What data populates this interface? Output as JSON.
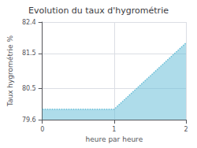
{
  "chart_data": {
    "type": "area",
    "title": "Evolution du taux d'hygrométrie",
    "xlabel": "heure par heure",
    "ylabel": "Taux hygrométrie %",
    "x": [
      0,
      1,
      2
    ],
    "values": [
      79.9,
      79.9,
      81.8
    ],
    "color": "#6bbfd8",
    "line_style": "dotted",
    "xlim": [
      0,
      2
    ],
    "xticks": [
      0,
      1,
      2
    ],
    "ylim": [
      79.6,
      82.4
    ],
    "yticks": [
      79.6,
      80.5,
      81.5,
      82.4
    ],
    "grid": true
  }
}
